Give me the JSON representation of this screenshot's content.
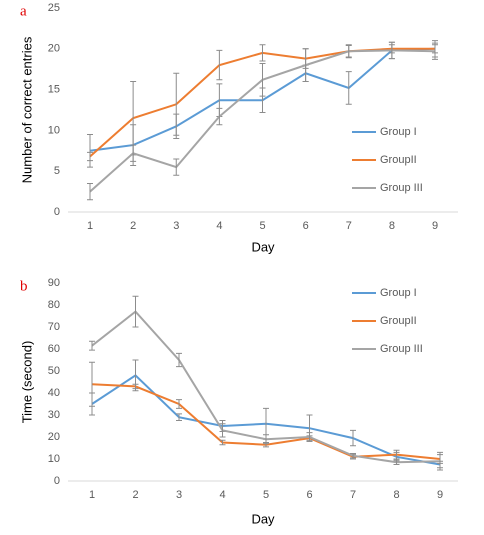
{
  "chart_data": [
    {
      "type": "line",
      "panel_label": "a",
      "x_label": "Day",
      "y_label": "Number of correct entries",
      "categories": [
        "1",
        "2",
        "3",
        "4",
        "5",
        "6",
        "7",
        "8",
        "9"
      ],
      "ylim": [
        0,
        25
      ],
      "yticks": [
        0,
        5,
        10,
        15,
        20,
        25
      ],
      "legend": "right",
      "grid": false,
      "series": [
        {
          "name": "Group I",
          "color": "#5b9bd5",
          "values": [
            7.5,
            8.2,
            10.5,
            13.7,
            13.7,
            17,
            15.2,
            19.8,
            20
          ],
          "errors": [
            2,
            2.5,
            1.5,
            2,
            1.5,
            1,
            2,
            1,
            1
          ]
        },
        {
          "name": "GroupII",
          "color": "#ed7d31",
          "values": [
            6.8,
            11.5,
            13.2,
            18,
            19.5,
            18.8,
            19.7,
            20,
            20
          ],
          "errors": [
            0.5,
            4.5,
            3.8,
            1.8,
            1,
            1.2,
            0.8,
            0.5,
            0.5
          ]
        },
        {
          "name": "Group III",
          "color": "#a5a5a5",
          "values": [
            2.5,
            7.2,
            5.5,
            11.7,
            16.2,
            18,
            19.7,
            19.8,
            19.7
          ],
          "errors": [
            1,
            1,
            1,
            1,
            2,
            2,
            0.7,
            1,
            1
          ]
        }
      ]
    },
    {
      "type": "line",
      "panel_label": "b",
      "x_label": "Day",
      "y_label": "Time (second)",
      "categories": [
        "1",
        "2",
        "3",
        "4",
        "5",
        "6",
        "7",
        "8",
        "9"
      ],
      "ylim": [
        0,
        90
      ],
      "yticks": [
        0,
        10,
        20,
        30,
        40,
        50,
        60,
        70,
        80,
        90
      ],
      "legend": "right",
      "grid": false,
      "series": [
        {
          "name": "Group I",
          "color": "#5b9bd5",
          "values": [
            35,
            48,
            29,
            25,
            26,
            24,
            19.5,
            11,
            7.5
          ],
          "errors": [
            5,
            7,
            1.5,
            2.5,
            7,
            6,
            3.5,
            2,
            1.5
          ]
        },
        {
          "name": "GroupII",
          "color": "#ed7d31",
          "values": [
            44,
            43,
            35,
            17.5,
            16.5,
            19.5,
            11,
            12,
            10
          ],
          "errors": [
            10,
            1,
            2,
            1,
            1,
            1,
            1,
            2,
            2
          ]
        },
        {
          "name": "Group III",
          "color": "#a5a5a5",
          "values": [
            61.5,
            77,
            55,
            23,
            19,
            20,
            11.5,
            8.5,
            9
          ],
          "errors": [
            2,
            7,
            3,
            3,
            2,
            2,
            1,
            1,
            4
          ]
        }
      ]
    }
  ]
}
